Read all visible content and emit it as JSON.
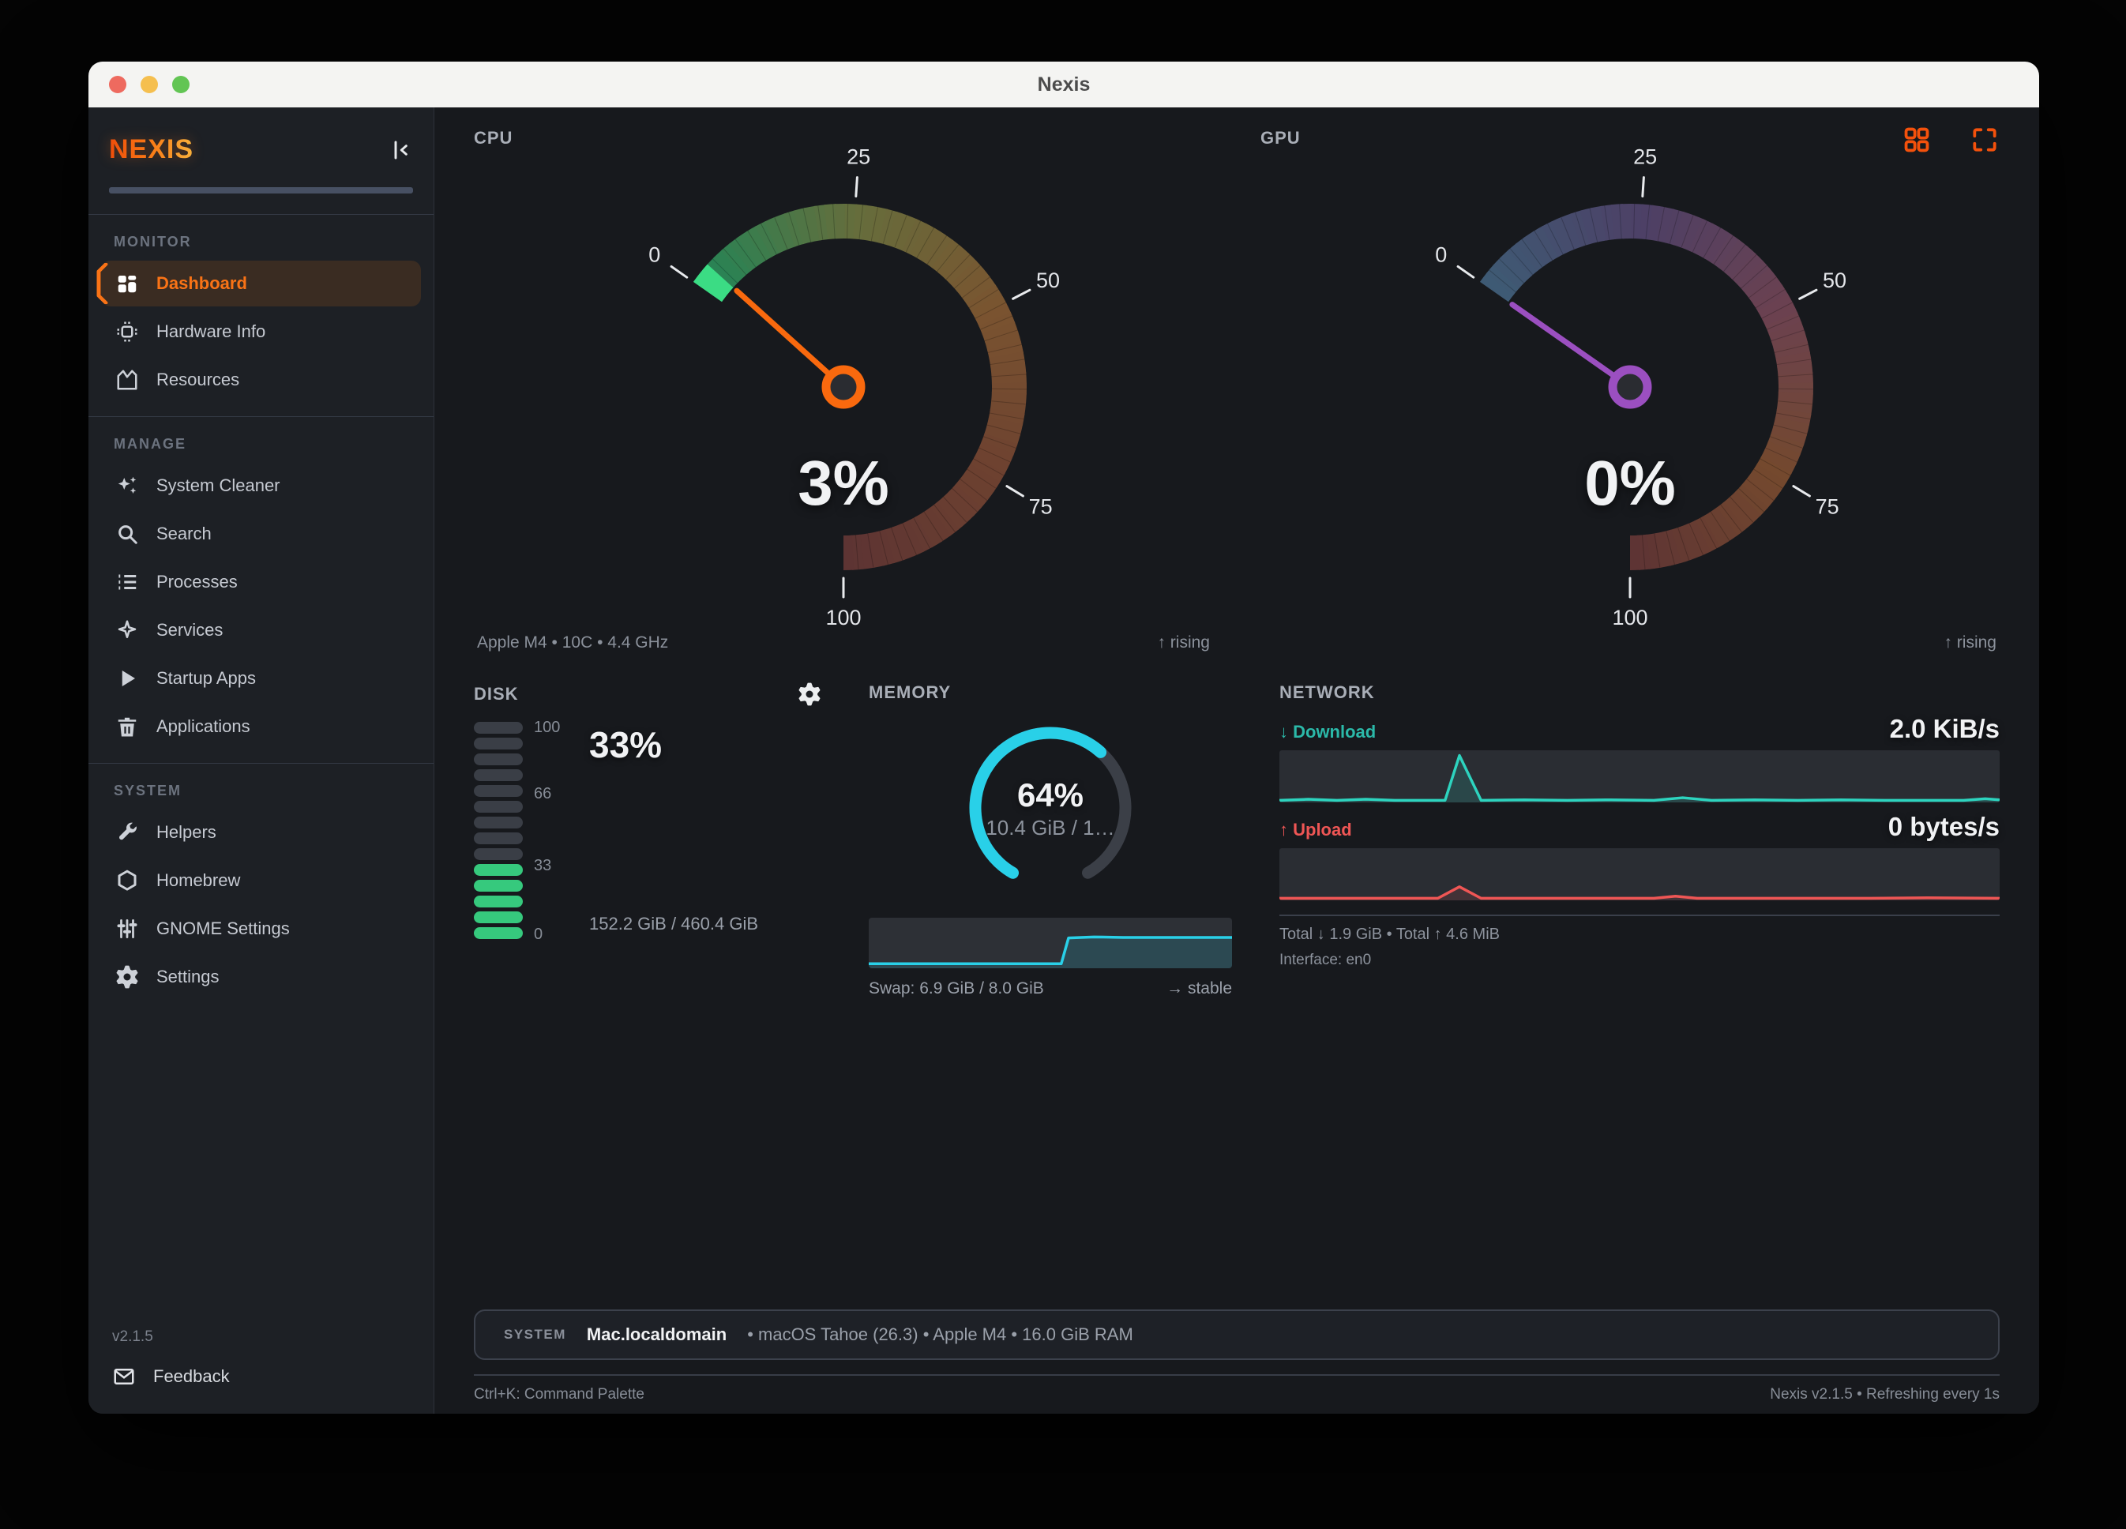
{
  "window": {
    "title": "Nexis"
  },
  "sidebar": {
    "logo": "NEXIS",
    "version": "v2.1.5",
    "feedback_label": "Feedback",
    "sections": [
      {
        "label": "MONITOR",
        "items": [
          {
            "label": "Dashboard",
            "icon": "dashboard",
            "active": true
          },
          {
            "label": "Hardware Info",
            "icon": "chip",
            "active": false
          },
          {
            "label": "Resources",
            "icon": "area",
            "active": false
          }
        ]
      },
      {
        "label": "MANAGE",
        "items": [
          {
            "label": "System Cleaner",
            "icon": "sparkles",
            "active": false
          },
          {
            "label": "Search",
            "icon": "search",
            "active": false
          },
          {
            "label": "Processes",
            "icon": "list",
            "active": false
          },
          {
            "label": "Services",
            "icon": "services",
            "active": false
          },
          {
            "label": "Startup Apps",
            "icon": "play",
            "active": false
          },
          {
            "label": "Applications",
            "icon": "trash",
            "active": false
          }
        ]
      },
      {
        "label": "SYSTEM",
        "items": [
          {
            "label": "Helpers",
            "icon": "wrench",
            "active": false
          },
          {
            "label": "Homebrew",
            "icon": "hexagon",
            "active": false
          },
          {
            "label": "GNOME Settings",
            "icon": "sliders",
            "active": false
          },
          {
            "label": "Settings",
            "icon": "gear",
            "active": false
          }
        ]
      }
    ]
  },
  "panels": {
    "cpu": {
      "title": "CPU",
      "value_label": "3%",
      "caption": "Apple M4 • 10C • 4.4 GHz",
      "trend": "↑ rising"
    },
    "gpu": {
      "title": "GPU",
      "value_label": "0%",
      "caption": "",
      "trend": "↑ rising"
    },
    "disk": {
      "title": "DISK",
      "percent_label": "33%",
      "usage_label": "152.2 GiB / 460.4 GiB"
    },
    "memory": {
      "title": "MEMORY",
      "percent_label": "64%",
      "usage_label": "10.4 GiB / 1…",
      "swap_label": "Swap: 6.9 GiB / 8.0 GiB",
      "trend": "→ stable"
    },
    "network": {
      "title": "NETWORK",
      "download_label": "↓ Download",
      "download_value": "2.0 KiB/s",
      "upload_label": "↑ Upload",
      "upload_value": "0 bytes/s",
      "totals": "Total ↓ 1.9 GiB  •  Total ↑ 4.6 MiB",
      "interface": "Interface: en0"
    }
  },
  "system_bar": {
    "label": "SYSTEM",
    "hostname": "Mac.localdomain",
    "details": "• macOS Tahoe (26.3) • Apple M4 • 16.0 GiB RAM"
  },
  "footer": {
    "left": "Ctrl+K: Command Palette",
    "right": "Nexis v2.1.5 • Refreshing every 1s"
  },
  "colors": {
    "accent_orange": "#f97316",
    "accent_purple": "#9b4fc0",
    "cyan": "#29d0e8",
    "teal": "#2dd4bf",
    "red": "#ef5655",
    "green": "#36c97d"
  },
  "chart_data": [
    {
      "type": "gauge",
      "title": "CPU usage",
      "value": 3,
      "min": 0,
      "max": 100,
      "ticks": [
        0,
        25,
        50,
        75,
        100
      ],
      "start_angle": 305,
      "sweep": 235,
      "track_stops": [
        "#238557",
        "#666d3c",
        "#7a5430",
        "#6d4130",
        "#5d3433"
      ],
      "value_color": "#3bdc84",
      "accent": "#f9690e",
      "subtitle": "Apple M4 • 10C • 4.4 GHz",
      "trend": "rising"
    },
    {
      "type": "gauge",
      "title": "GPU usage",
      "value": 0,
      "min": 0,
      "max": 100,
      "ticks": [
        0,
        25,
        50,
        75,
        100
      ],
      "start_angle": 305,
      "sweep": 235,
      "track_stops": [
        "#3e5a74",
        "#4d4066",
        "#6b4150",
        "#74492e",
        "#5e3434"
      ],
      "value_color": "#9b4fc0",
      "accent": "#9b4fc0",
      "subtitle": "",
      "trend": "rising"
    },
    {
      "type": "donut",
      "title": "Memory usage",
      "percent": 64,
      "start_angle": 210,
      "sweep": 300,
      "color": "#29d0e8",
      "track_color": "#3b3f47",
      "center_label": "64%",
      "sub_label": "10.4 GiB / 1…"
    },
    {
      "type": "area",
      "title": "Swap usage history",
      "color": "#29d0e8",
      "fill": "rgba(41,208,232,0.16)",
      "ylim": [
        0,
        100
      ],
      "points": [
        [
          0,
          9
        ],
        [
          15,
          9
        ],
        [
          30,
          9
        ],
        [
          45,
          9
        ],
        [
          53,
          9
        ],
        [
          55,
          60
        ],
        [
          62,
          62
        ],
        [
          70,
          61
        ],
        [
          80,
          61
        ],
        [
          90,
          61
        ],
        [
          100,
          61
        ]
      ]
    },
    {
      "type": "area",
      "title": "Network download (KiB/s)",
      "color": "#2dd4bf",
      "fill": "rgba(45,212,191,0.16)",
      "ylim": [
        0,
        100
      ],
      "points": [
        [
          0,
          4
        ],
        [
          4,
          6
        ],
        [
          8,
          4
        ],
        [
          12,
          6
        ],
        [
          16,
          4
        ],
        [
          20,
          4
        ],
        [
          23,
          4
        ],
        [
          25,
          90
        ],
        [
          28,
          4
        ],
        [
          34,
          5
        ],
        [
          40,
          4
        ],
        [
          46,
          5
        ],
        [
          52,
          4
        ],
        [
          56,
          9
        ],
        [
          60,
          4
        ],
        [
          66,
          5
        ],
        [
          72,
          4
        ],
        [
          78,
          5
        ],
        [
          84,
          4
        ],
        [
          90,
          4
        ],
        [
          95,
          4
        ],
        [
          98,
          7
        ],
        [
          100,
          5
        ]
      ]
    },
    {
      "type": "area",
      "title": "Network upload (bytes/s)",
      "color": "#ef5655",
      "fill": "rgba(239,86,85,0.13)",
      "ylim": [
        0,
        100
      ],
      "points": [
        [
          0,
          4
        ],
        [
          8,
          4
        ],
        [
          16,
          4
        ],
        [
          22,
          4
        ],
        [
          25,
          26
        ],
        [
          28,
          4
        ],
        [
          36,
          4
        ],
        [
          44,
          4
        ],
        [
          52,
          4
        ],
        [
          55,
          8
        ],
        [
          58,
          4
        ],
        [
          66,
          4
        ],
        [
          74,
          4
        ],
        [
          82,
          4
        ],
        [
          90,
          5
        ],
        [
          100,
          4
        ]
      ]
    },
    {
      "type": "segmented-bar",
      "title": "Disk usage",
      "percent": 33,
      "segments": 14,
      "filled": 5,
      "scale_ticks": [
        100,
        66,
        33,
        0
      ],
      "filled_color": "#36c97d",
      "empty_color": "#3a3e46"
    }
  ]
}
